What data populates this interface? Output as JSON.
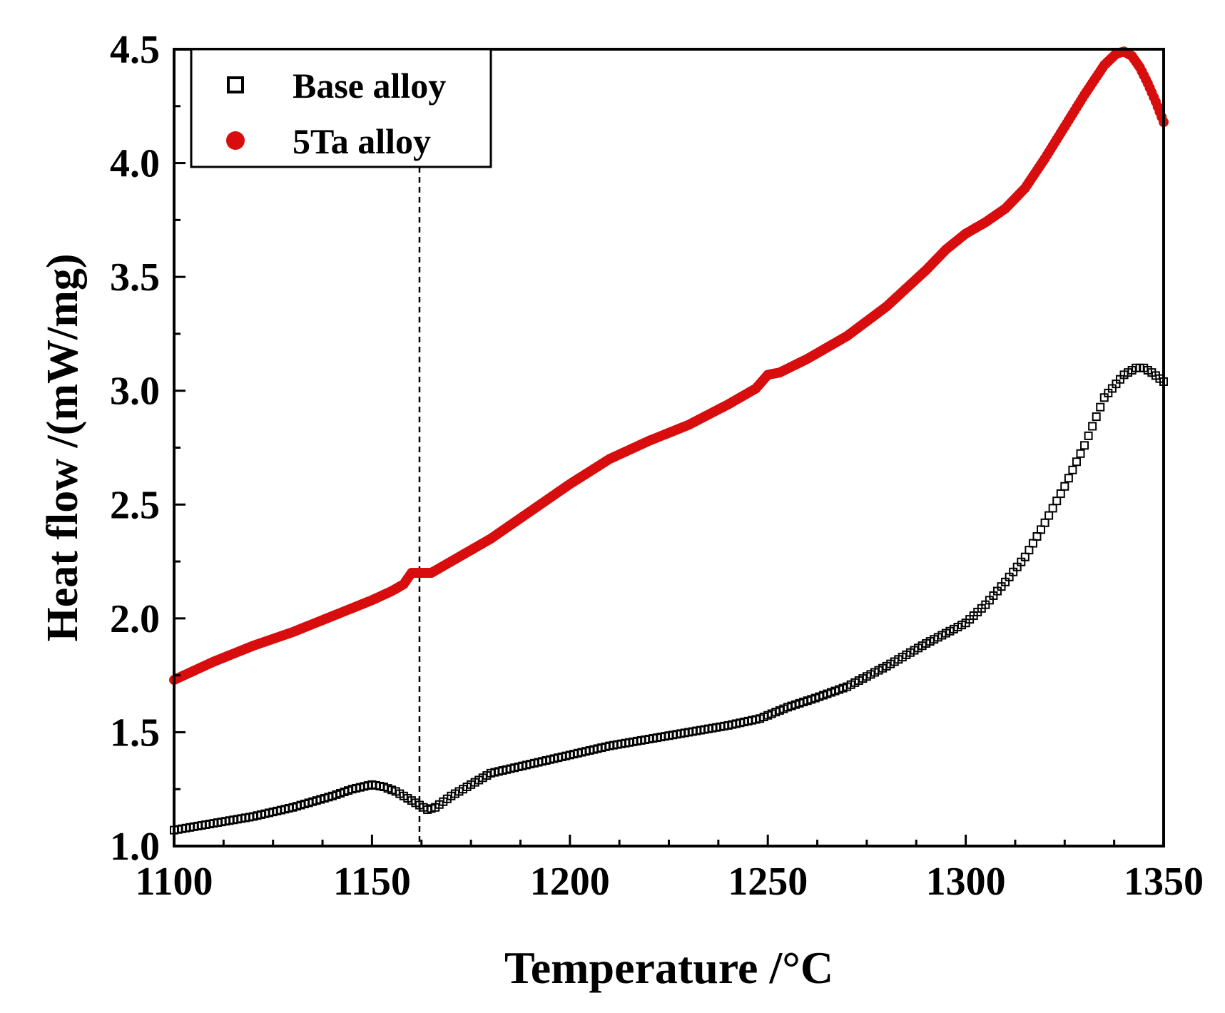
{
  "chart_data": {
    "type": "scatter",
    "title": "",
    "xlabel": "Temperature /°C",
    "ylabel": "Heat flow /(mW/mg)",
    "xlim": [
      1100,
      1350
    ],
    "ylim": [
      1.0,
      4.5
    ],
    "x_ticks": [
      1100,
      1150,
      1200,
      1250,
      1300,
      1350
    ],
    "x_tick_labels": [
      "1100",
      "1150",
      "1200",
      "1250",
      "1300",
      "1350"
    ],
    "x_minor_step": 12.5,
    "y_ticks": [
      1.0,
      1.5,
      2.0,
      2.5,
      3.0,
      3.5,
      4.0,
      4.5
    ],
    "y_tick_labels": [
      "1.0",
      "1.5",
      "2.0",
      "2.5",
      "3.0",
      "3.5",
      "4.0",
      "4.5"
    ],
    "y_minor_step": 0.25,
    "grid": false,
    "legend_position": "top-left",
    "reference_line": {
      "x": 1162,
      "style": "dashed",
      "color": "#000000"
    },
    "series": [
      {
        "name": "Base alloy",
        "marker": "open-square",
        "color": "#000000",
        "x": [
          1100,
          1110,
          1120,
          1130,
          1140,
          1145,
          1150,
          1153,
          1156,
          1159,
          1162,
          1164,
          1166,
          1170,
          1175,
          1180,
          1190,
          1200,
          1210,
          1220,
          1230,
          1240,
          1248,
          1255,
          1262,
          1270,
          1280,
          1290,
          1300,
          1305,
          1310,
          1315,
          1320,
          1325,
          1330,
          1335,
          1340,
          1343,
          1345,
          1347,
          1350
        ],
        "y": [
          1.07,
          1.1,
          1.13,
          1.17,
          1.22,
          1.25,
          1.27,
          1.26,
          1.24,
          1.21,
          1.18,
          1.16,
          1.17,
          1.22,
          1.27,
          1.32,
          1.36,
          1.4,
          1.44,
          1.47,
          1.5,
          1.53,
          1.56,
          1.61,
          1.65,
          1.7,
          1.79,
          1.89,
          1.98,
          2.06,
          2.16,
          2.27,
          2.42,
          2.58,
          2.76,
          2.97,
          3.07,
          3.1,
          3.1,
          3.08,
          3.04
        ]
      },
      {
        "name": "5Ta alloy",
        "marker": "filled-circle",
        "color": "#d80d0d",
        "x": [
          1100,
          1110,
          1120,
          1130,
          1140,
          1150,
          1155,
          1158,
          1160,
          1162,
          1165,
          1170,
          1180,
          1190,
          1200,
          1210,
          1215,
          1220,
          1230,
          1240,
          1247,
          1250,
          1253,
          1260,
          1270,
          1280,
          1290,
          1295,
          1300,
          1305,
          1310,
          1315,
          1320,
          1325,
          1330,
          1335,
          1338,
          1340,
          1342,
          1344,
          1346,
          1348,
          1350
        ],
        "y": [
          1.73,
          1.81,
          1.88,
          1.94,
          2.01,
          2.08,
          2.12,
          2.15,
          2.2,
          2.2,
          2.2,
          2.25,
          2.35,
          2.47,
          2.59,
          2.7,
          2.74,
          2.78,
          2.85,
          2.94,
          3.01,
          3.07,
          3.08,
          3.14,
          3.24,
          3.37,
          3.53,
          3.62,
          3.69,
          3.74,
          3.8,
          3.89,
          4.02,
          4.16,
          4.3,
          4.43,
          4.48,
          4.49,
          4.47,
          4.42,
          4.35,
          4.27,
          4.18
        ]
      }
    ]
  }
}
